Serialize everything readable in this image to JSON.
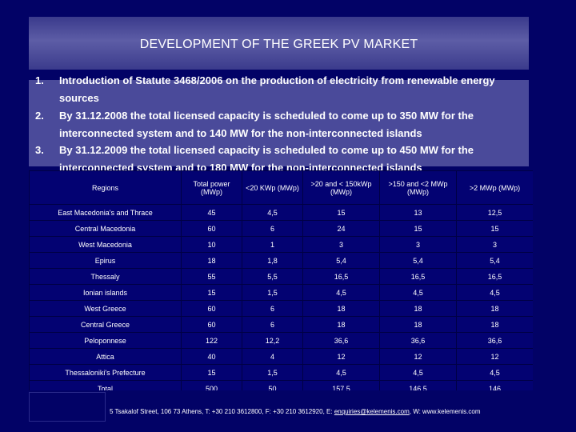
{
  "title": "DEVELOPMENT OF THE GREEK PV MARKET",
  "points": [
    {
      "num": "1.",
      "text": "Introduction of Statute 3468/2006 on the production of electricity from renewable energy sources"
    },
    {
      "num": "2.",
      "text": "By 31.12.2008 the total licensed capacity is scheduled to come up to 350 MW for the interconnected system and to 140 MW for the non-interconnected islands"
    },
    {
      "num": "3.",
      "text": "By 31.12.2009 the total licensed capacity is scheduled to come up to 450 MW for the interconnected system and to 180 MW for the non-interconnected islands"
    }
  ],
  "table": {
    "headers": [
      "Regions",
      "Total power (MWp)",
      "<20 KWp (MWp)",
      ">20 and < 150kWp (MWp)",
      ">150 and <2 MWp (MWp)",
      ">2 MWp (MWp)"
    ],
    "rows": [
      [
        "East Macedonia's and Thrace",
        "45",
        "4,5",
        "15",
        "13",
        "12,5"
      ],
      [
        "Central Macedonia",
        "60",
        "6",
        "24",
        "15",
        "15"
      ],
      [
        "West Macedonia",
        "10",
        "1",
        "3",
        "3",
        "3"
      ],
      [
        "Epirus",
        "18",
        "1,8",
        "5,4",
        "5,4",
        "5,4"
      ],
      [
        "Thessaly",
        "55",
        "5,5",
        "16,5",
        "16,5",
        "16,5"
      ],
      [
        "Ionian islands",
        "15",
        "1,5",
        "4,5",
        "4,5",
        "4,5"
      ],
      [
        "West Greece",
        "60",
        "6",
        "18",
        "18",
        "18"
      ],
      [
        "Central Greece",
        "60",
        "6",
        "18",
        "18",
        "18"
      ],
      [
        "Peloponnese",
        "122",
        "12,2",
        "36,6",
        "36,6",
        "36,6"
      ],
      [
        "Attica",
        "40",
        "4",
        "12",
        "12",
        "12"
      ],
      [
        "Thessaloniki's Prefecture",
        "15",
        "1,5",
        "4,5",
        "4,5",
        "4,5"
      ],
      [
        "Total",
        "500",
        "50",
        "157,5",
        "146,5",
        "146"
      ]
    ]
  },
  "footer": {
    "address": "5 Tsakalof Street, 106 73 Athens, T: +30 210 3612800, F: +30 210 3612920, E: ",
    "email": "enquiries@kelemenis.com",
    "web": ", W: www.kelemenis.com"
  },
  "colors": {
    "background": "#020266",
    "title_band": "#5d5da6",
    "points_band": "#4a4a9a"
  }
}
